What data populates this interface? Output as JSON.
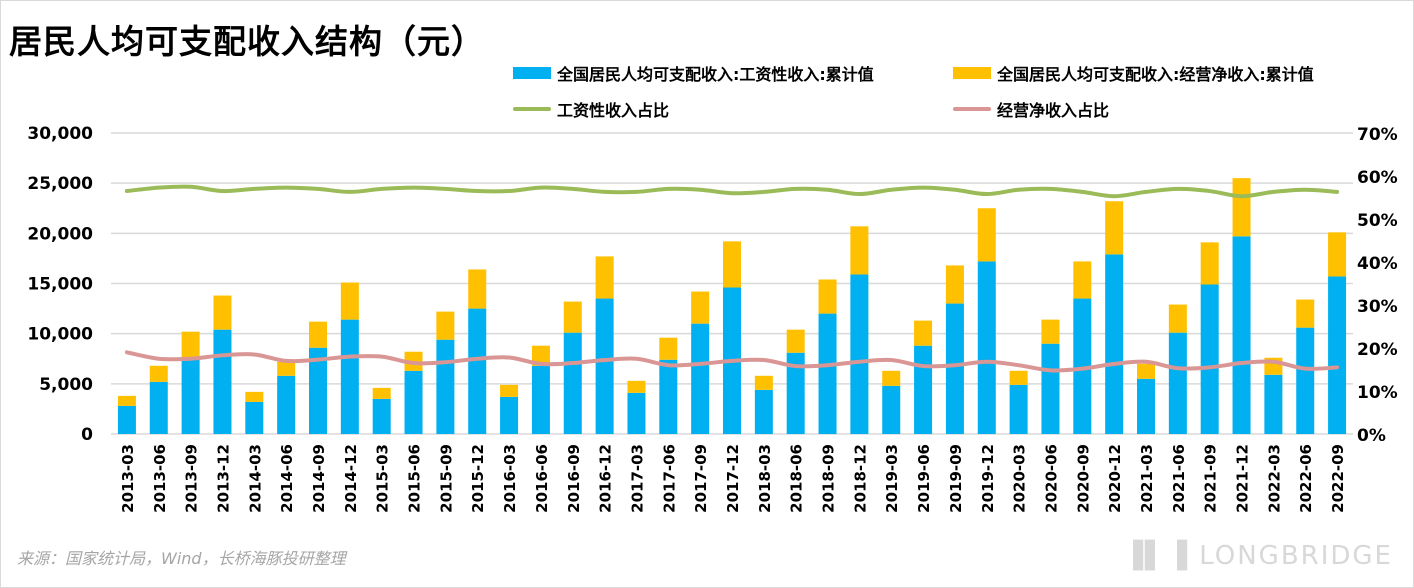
{
  "chart_data": {
    "type": "bar",
    "title": "居民人均可支配收入结构（元）",
    "categories": [
      "2013-03",
      "2013-06",
      "2013-09",
      "2013-12",
      "2014-03",
      "2014-06",
      "2014-09",
      "2014-12",
      "2015-03",
      "2015-06",
      "2015-09",
      "2015-12",
      "2016-03",
      "2016-06",
      "2016-09",
      "2016-12",
      "2017-03",
      "2017-06",
      "2017-09",
      "2017-12",
      "2018-03",
      "2018-06",
      "2018-09",
      "2018-12",
      "2019-03",
      "2019-06",
      "2019-09",
      "2019-12",
      "2020-03",
      "2020-06",
      "2020-09",
      "2020-12",
      "2021-03",
      "2021-06",
      "2021-09",
      "2021-12",
      "2022-03",
      "2022-06",
      "2022-09"
    ],
    "series": [
      {
        "name": "全国居民人均可支配收入:工资性收入:累计值",
        "type": "bar",
        "axis": "left",
        "color": "#00b0f0",
        "values": [
          2800,
          5200,
          7600,
          10400,
          3200,
          5800,
          8600,
          11400,
          3500,
          6300,
          9400,
          12500,
          3700,
          6800,
          10100,
          13500,
          4100,
          7400,
          11000,
          14600,
          4400,
          8100,
          12000,
          15900,
          4800,
          8800,
          13000,
          17200,
          4900,
          9000,
          13500,
          17900,
          5500,
          10100,
          14900,
          19700,
          5900,
          10600,
          15700
        ]
      },
      {
        "name": "全国居民人均可支配收入:经营净收入:累计值",
        "type": "bar",
        "axis": "left",
        "color": "#ffc000",
        "values": [
          1000,
          1600,
          2600,
          3400,
          1000,
          1400,
          2600,
          3700,
          1100,
          1900,
          2800,
          3900,
          1200,
          2000,
          3100,
          4200,
          1200,
          2200,
          3200,
          4600,
          1400,
          2300,
          3400,
          4800,
          1500,
          2500,
          3800,
          5300,
          1400,
          2400,
          3700,
          5300,
          1500,
          2800,
          4200,
          5800,
          1700,
          2800,
          4400
        ]
      },
      {
        "name": "工资性收入占比",
        "type": "line",
        "axis": "right",
        "color": "#9bbb59",
        "values": [
          56.5,
          57.3,
          57.5,
          56.5,
          57.0,
          57.3,
          57.0,
          56.3,
          57.0,
          57.3,
          57.0,
          56.5,
          56.5,
          57.3,
          57.0,
          56.3,
          56.3,
          57.0,
          56.8,
          56.0,
          56.3,
          57.0,
          56.8,
          55.8,
          56.8,
          57.3,
          56.8,
          55.8,
          56.8,
          57.0,
          56.3,
          55.3,
          56.3,
          57.0,
          56.5,
          55.3,
          56.3,
          56.8,
          56.3
        ]
      },
      {
        "name": "经营净收入占比",
        "type": "line",
        "axis": "right",
        "color": "#d99694",
        "values": [
          19.0,
          17.5,
          17.5,
          18.3,
          18.5,
          17.0,
          17.3,
          18.0,
          18.0,
          16.5,
          16.7,
          17.5,
          17.8,
          16.3,
          16.5,
          17.2,
          17.5,
          16.0,
          16.3,
          17.0,
          17.2,
          15.8,
          16.0,
          16.8,
          17.2,
          15.8,
          16.0,
          16.8,
          16.0,
          14.8,
          15.2,
          16.3,
          16.8,
          15.3,
          15.5,
          16.5,
          16.8,
          15.2,
          15.5
        ]
      }
    ],
    "stacked": true,
    "ylim": [
      0,
      30000
    ],
    "yticks": [
      "0",
      "5,000",
      "10,000",
      "15,000",
      "20,000",
      "25,000",
      "30,000"
    ],
    "y2lim": [
      0,
      70
    ],
    "y2ticks": [
      "0%",
      "10%",
      "20%",
      "30%",
      "40%",
      "50%",
      "60%",
      "70%"
    ],
    "grid": true,
    "legend": "top"
  },
  "source": "来源：国家统计局，Wind，长桥海豚投研整理",
  "watermark": "LONGBRIDGE"
}
